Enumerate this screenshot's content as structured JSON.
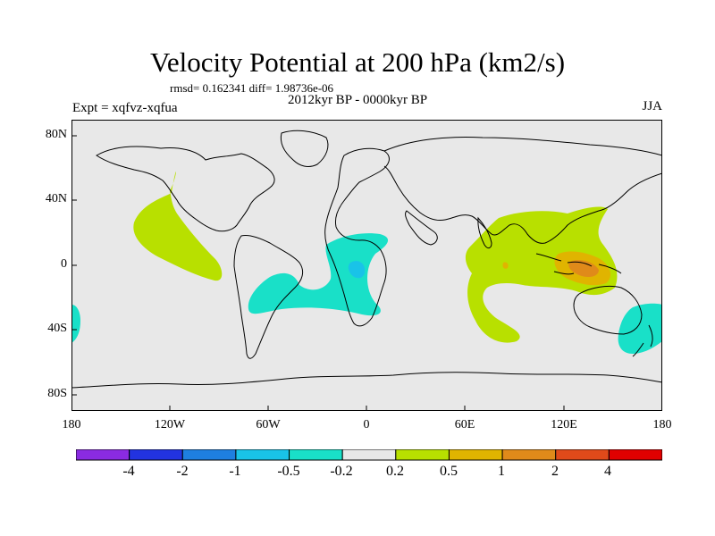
{
  "title": "Velocity Potential at 200 hPa (km2/s)",
  "stats": "rmsd= 0.162341  diff= 1.98736e-06",
  "left_label": "Expt = xqfvz-xqfua",
  "center_label": "2012kyr BP - 0000kyr BP",
  "right_label": "JJA",
  "y_ticks": [
    "80N",
    "40N",
    "0",
    "40S",
    "80S"
  ],
  "x_ticks": [
    "180",
    "120W",
    "60W",
    "0",
    "60E",
    "120E",
    "180"
  ],
  "colorbar": {
    "colors": [
      "#8a2be2",
      "#2233e0",
      "#1e7fe0",
      "#19c3e8",
      "#19e0c8",
      "#e8e8e8",
      "#b8e000",
      "#e0b400",
      "#e08a1a",
      "#e04a1a",
      "#e00000"
    ],
    "labels": [
      "-4",
      "-2",
      "-1",
      "-0.5",
      "-0.2",
      "0.2",
      "0.5",
      "1",
      "2",
      "4"
    ]
  },
  "colors": {
    "background": "#e8e8e8",
    "positive_weak": "#b8e000",
    "positive_mid": "#e0b400",
    "positive_strong": "#e08a1a",
    "negative_weak": "#19e0c8",
    "negative_mid": "#19c3e8"
  }
}
